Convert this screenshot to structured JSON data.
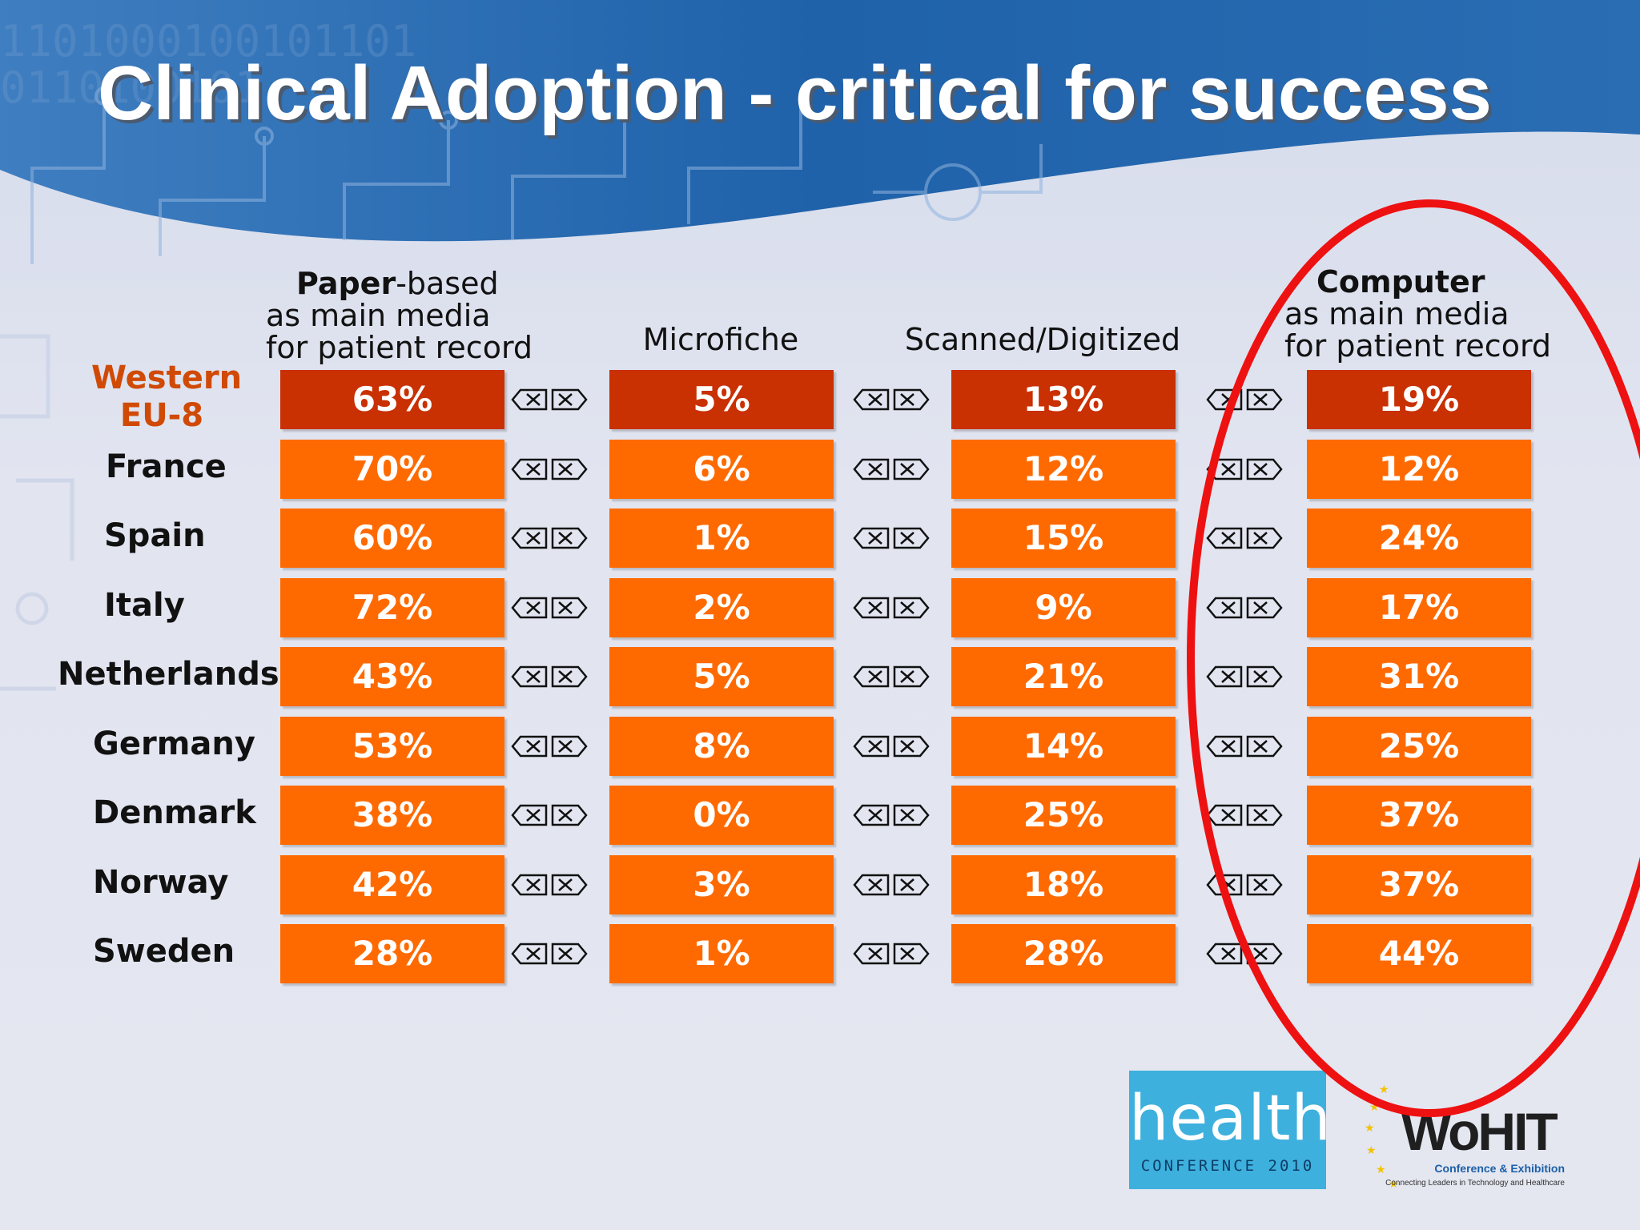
{
  "slide": {
    "title": "Clinical Adoption - critical for success"
  },
  "columns": [
    {
      "id": "paper",
      "lines": [
        {
          "bold": "Paper",
          "rest": "-based"
        },
        {
          "bold": "",
          "rest": "as main media"
        },
        {
          "bold": "",
          "rest": "for patient record"
        }
      ]
    },
    {
      "id": "microfiche",
      "lines": [
        {
          "bold": "",
          "rest": "Microfiche"
        }
      ]
    },
    {
      "id": "scanned",
      "lines": [
        {
          "bold": "",
          "rest": "Scanned/Digitized"
        }
      ]
    },
    {
      "id": "computer",
      "lines": [
        {
          "bold": "Computer",
          "rest": ""
        },
        {
          "bold": "",
          "rest": "as main media"
        },
        {
          "bold": "",
          "rest": "for patient record"
        }
      ]
    }
  ],
  "region_label": [
    "Western",
    "EU-8"
  ],
  "rows": [
    {
      "label": "Western EU-8",
      "values": [
        "63%",
        "5%",
        "13%",
        "19%"
      ],
      "highlight": true
    },
    {
      "label": "France",
      "values": [
        "70%",
        "6%",
        "12%",
        "12%"
      ]
    },
    {
      "label": "Spain",
      "values": [
        "60%",
        "1%",
        "15%",
        "24%"
      ]
    },
    {
      "label": "Italy",
      "values": [
        "72%",
        "2%",
        "9%",
        "17%"
      ]
    },
    {
      "label": "Netherlands",
      "values": [
        "43%",
        "5%",
        "21%",
        "31%"
      ]
    },
    {
      "label": "Germany",
      "values": [
        "53%",
        "8%",
        "14%",
        "25%"
      ]
    },
    {
      "label": "Denmark",
      "values": [
        "38%",
        "0%",
        "25%",
        "37%"
      ]
    },
    {
      "label": "Norway",
      "values": [
        "42%",
        "3%",
        "18%",
        "37%"
      ]
    },
    {
      "label": "Sweden",
      "values": [
        "28%",
        "1%",
        "28%",
        "44%"
      ]
    }
  ],
  "colors": {
    "cell": "#ff6a00",
    "cell_highlight": "#c93002",
    "region_label": "#d04a06",
    "ellipse": "#ee1111",
    "banner": "#1d5fa5"
  },
  "logos": {
    "health": {
      "word": "health",
      "sub": "CONFERENCE 2010"
    },
    "wohit": {
      "word": "WoHIT",
      "conf": "Conference & Exhibition",
      "tag": "Connecting Leaders in Technology and Healthcare"
    }
  }
}
